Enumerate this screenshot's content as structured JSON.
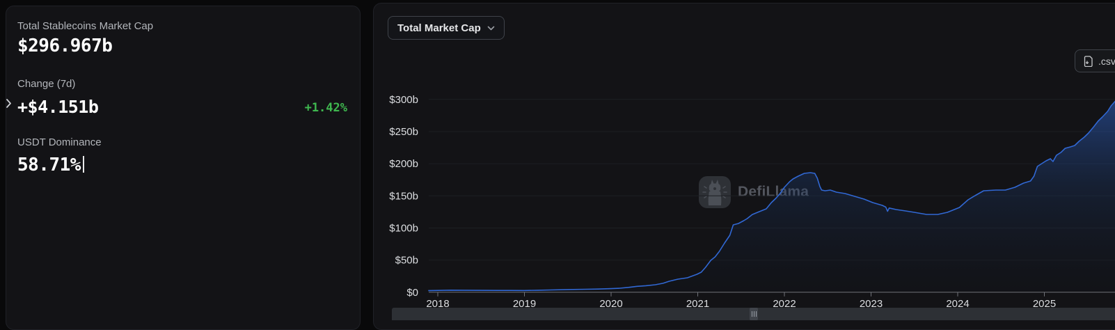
{
  "stats_panel": {
    "market_cap": {
      "label": "Total Stablecoins Market Cap",
      "value": "$296.967b"
    },
    "change": {
      "label": "Change (7d)",
      "value": "+$4.151b",
      "percent": "+1.42%",
      "percent_color": "#3fb84f"
    },
    "dominance": {
      "label": "USDT Dominance",
      "value": "58.71%"
    }
  },
  "chart_panel": {
    "metric_dropdown_label": "Total Market Cap",
    "csv_button_label": ".csv",
    "watermark_text": "DefiLlama"
  },
  "chart_data": {
    "type": "area",
    "title": "Total Market Cap",
    "xlabel": "",
    "ylabel": "",
    "x_unit": "year",
    "y_unit": "USD billions",
    "xlim": [
      2017.89,
      2025.82
    ],
    "ylim": [
      0,
      318
    ],
    "grid": true,
    "legend": false,
    "line_color": "#3168d4",
    "fill_color": "#1c3a6e",
    "xticks": [
      2018,
      2019,
      2020,
      2021,
      2022,
      2023,
      2024,
      2025
    ],
    "yticks": [
      {
        "value": 0,
        "label": "$0"
      },
      {
        "value": 50,
        "label": "$50b"
      },
      {
        "value": 100,
        "label": "$100b"
      },
      {
        "value": 150,
        "label": "$150b"
      },
      {
        "value": 200,
        "label": "$200b"
      },
      {
        "value": 250,
        "label": "$250b"
      },
      {
        "value": 300,
        "label": "$300b"
      }
    ],
    "series": [
      {
        "name": "Total Stablecoins Market Cap",
        "points": [
          [
            2017.89,
            2.6
          ],
          [
            2018.0,
            2.8
          ],
          [
            2018.15,
            3.2
          ],
          [
            2018.3,
            3.1
          ],
          [
            2018.5,
            2.9
          ],
          [
            2018.7,
            2.8
          ],
          [
            2018.85,
            2.8
          ],
          [
            2019.0,
            2.7
          ],
          [
            2019.15,
            3.1
          ],
          [
            2019.3,
            3.6
          ],
          [
            2019.5,
            4.2
          ],
          [
            2019.7,
            4.7
          ],
          [
            2019.85,
            5.0
          ],
          [
            2020.0,
            5.6
          ],
          [
            2020.1,
            6.3
          ],
          [
            2020.2,
            7.6
          ],
          [
            2020.3,
            9.2
          ],
          [
            2020.4,
            10.2
          ],
          [
            2020.51,
            11.7
          ],
          [
            2020.6,
            14.0
          ],
          [
            2020.67,
            17.1
          ],
          [
            2020.77,
            20.4
          ],
          [
            2020.88,
            22.5
          ],
          [
            2020.99,
            27.9
          ],
          [
            2021.04,
            31.2
          ],
          [
            2021.09,
            38.8
          ],
          [
            2021.15,
            49.6
          ],
          [
            2021.2,
            55.0
          ],
          [
            2021.25,
            63.7
          ],
          [
            2021.31,
            76.7
          ],
          [
            2021.37,
            88.6
          ],
          [
            2021.41,
            104.8
          ],
          [
            2021.47,
            107.0
          ],
          [
            2021.53,
            111.3
          ],
          [
            2021.57,
            114.6
          ],
          [
            2021.63,
            121.0
          ],
          [
            2021.71,
            125.4
          ],
          [
            2021.79,
            129.8
          ],
          [
            2021.85,
            139.5
          ],
          [
            2021.9,
            146.0
          ],
          [
            2021.95,
            153.6
          ],
          [
            2022.0,
            163.3
          ],
          [
            2022.06,
            172.0
          ],
          [
            2022.1,
            176.3
          ],
          [
            2022.16,
            180.6
          ],
          [
            2022.23,
            185.0
          ],
          [
            2022.3,
            186.1
          ],
          [
            2022.35,
            185.0
          ],
          [
            2022.38,
            177.4
          ],
          [
            2022.41,
            164.4
          ],
          [
            2022.43,
            159.0
          ],
          [
            2022.47,
            157.9
          ],
          [
            2022.53,
            159.0
          ],
          [
            2022.6,
            155.7
          ],
          [
            2022.7,
            153.6
          ],
          [
            2022.81,
            149.2
          ],
          [
            2022.92,
            144.9
          ],
          [
            2023.02,
            139.5
          ],
          [
            2023.13,
            135.2
          ],
          [
            2023.17,
            132.5
          ],
          [
            2023.19,
            126.0
          ],
          [
            2023.21,
            131.0
          ],
          [
            2023.29,
            128.7
          ],
          [
            2023.4,
            126.5
          ],
          [
            2023.5,
            124.3
          ],
          [
            2023.64,
            121.1
          ],
          [
            2023.77,
            121.1
          ],
          [
            2023.88,
            124.3
          ],
          [
            2024.02,
            131.9
          ],
          [
            2024.12,
            143.8
          ],
          [
            2024.2,
            150.3
          ],
          [
            2024.3,
            157.9
          ],
          [
            2024.44,
            159.0
          ],
          [
            2024.55,
            159.0
          ],
          [
            2024.66,
            163.3
          ],
          [
            2024.76,
            169.8
          ],
          [
            2024.84,
            173.1
          ],
          [
            2024.88,
            180.7
          ],
          [
            2024.92,
            195.8
          ],
          [
            2025.02,
            204.5
          ],
          [
            2025.07,
            207.7
          ],
          [
            2025.1,
            203.4
          ],
          [
            2025.14,
            213.1
          ],
          [
            2025.19,
            217.5
          ],
          [
            2025.24,
            224.0
          ],
          [
            2025.3,
            226.1
          ],
          [
            2025.35,
            228.3
          ],
          [
            2025.4,
            234.8
          ],
          [
            2025.46,
            241.3
          ],
          [
            2025.51,
            247.8
          ],
          [
            2025.57,
            257.5
          ],
          [
            2025.62,
            266.2
          ],
          [
            2025.67,
            272.7
          ],
          [
            2025.73,
            281.4
          ],
          [
            2025.77,
            290.0
          ],
          [
            2025.82,
            297.6
          ]
        ]
      }
    ]
  }
}
